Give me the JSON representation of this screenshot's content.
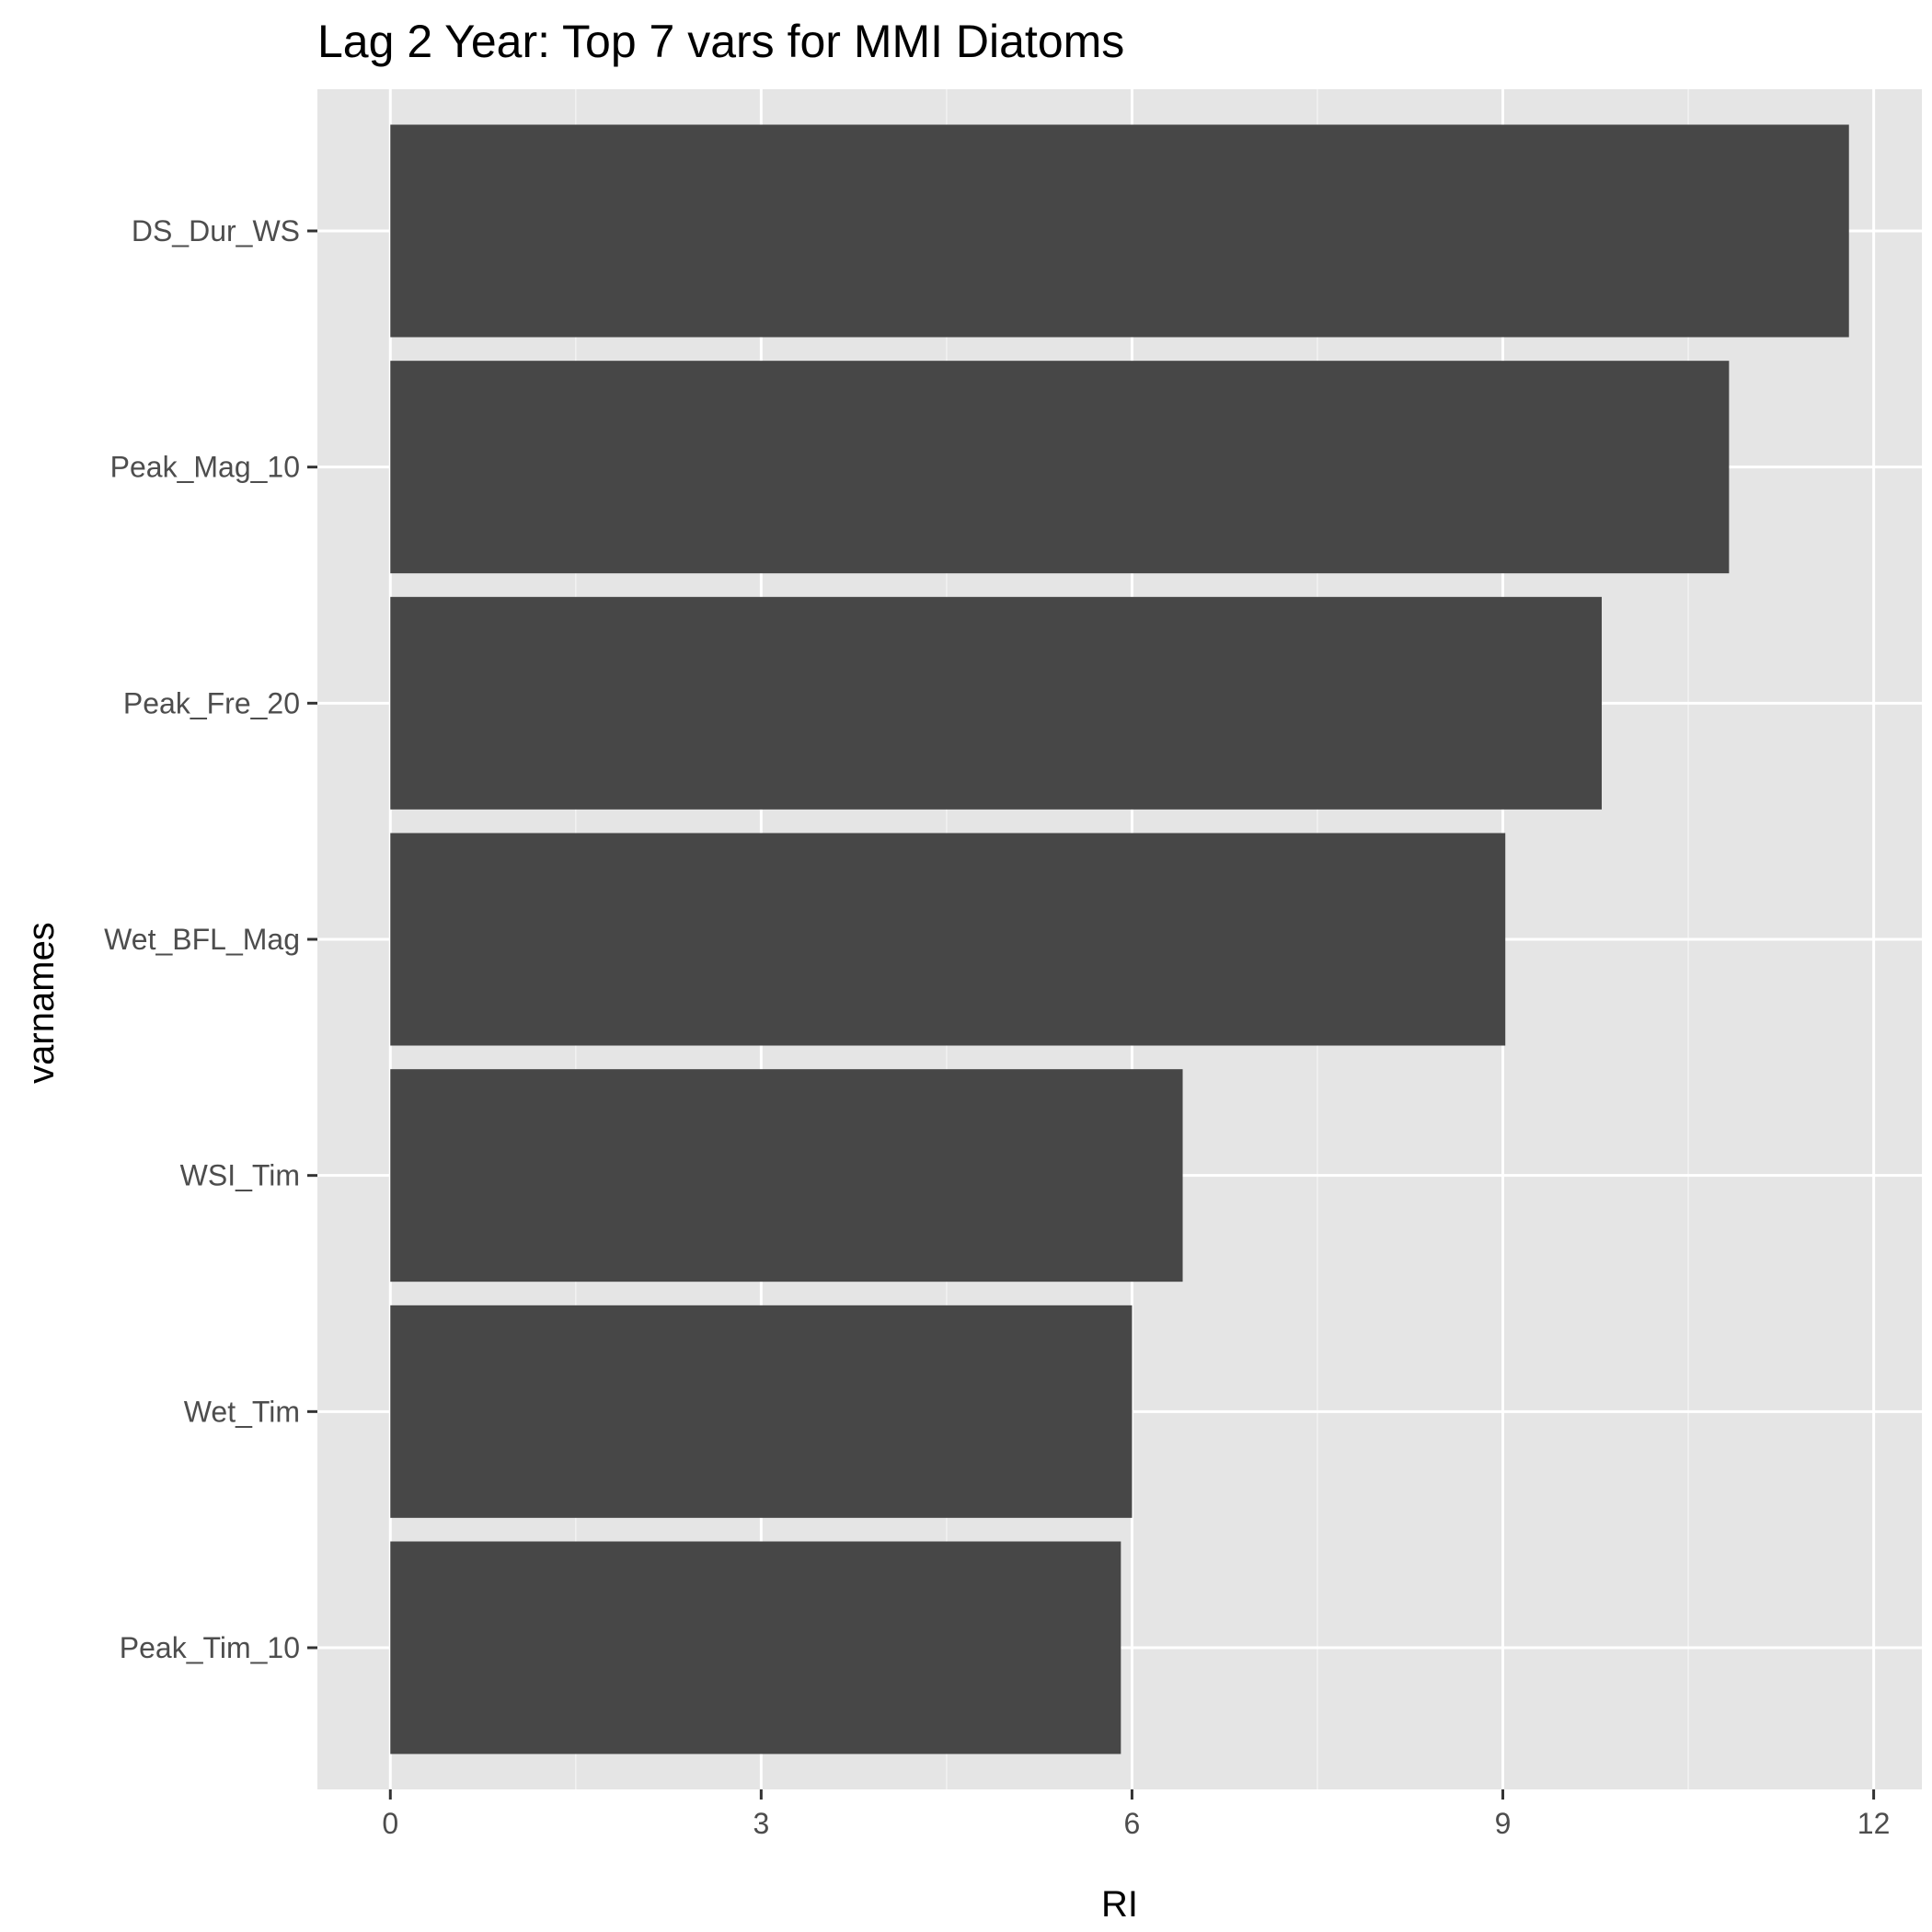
{
  "chart_data": {
    "type": "bar",
    "orientation": "horizontal",
    "title": "Lag 2 Year: Top 7 vars for MMI Diatoms",
    "xlabel": "RI",
    "ylabel": "varnames",
    "categories": [
      "DS_Dur_WS",
      "Peak_Mag_10",
      "Peak_Fre_20",
      "Wet_BFL_Mag",
      "WSI_Tim",
      "Wet_Tim",
      "Peak_Tim_10"
    ],
    "values": [
      11.8,
      10.83,
      9.8,
      9.02,
      6.41,
      6.0,
      5.91
    ],
    "xlim": [
      -0.59,
      12.39
    ],
    "xticks": [
      "0",
      "3",
      "6",
      "9",
      "12"
    ],
    "grid": true,
    "legend": "none",
    "colors": {
      "bar": "#474747",
      "panel": "#e5e5e5",
      "grid_major": "#ffffff",
      "grid_minor": "#f2f2f2"
    }
  }
}
